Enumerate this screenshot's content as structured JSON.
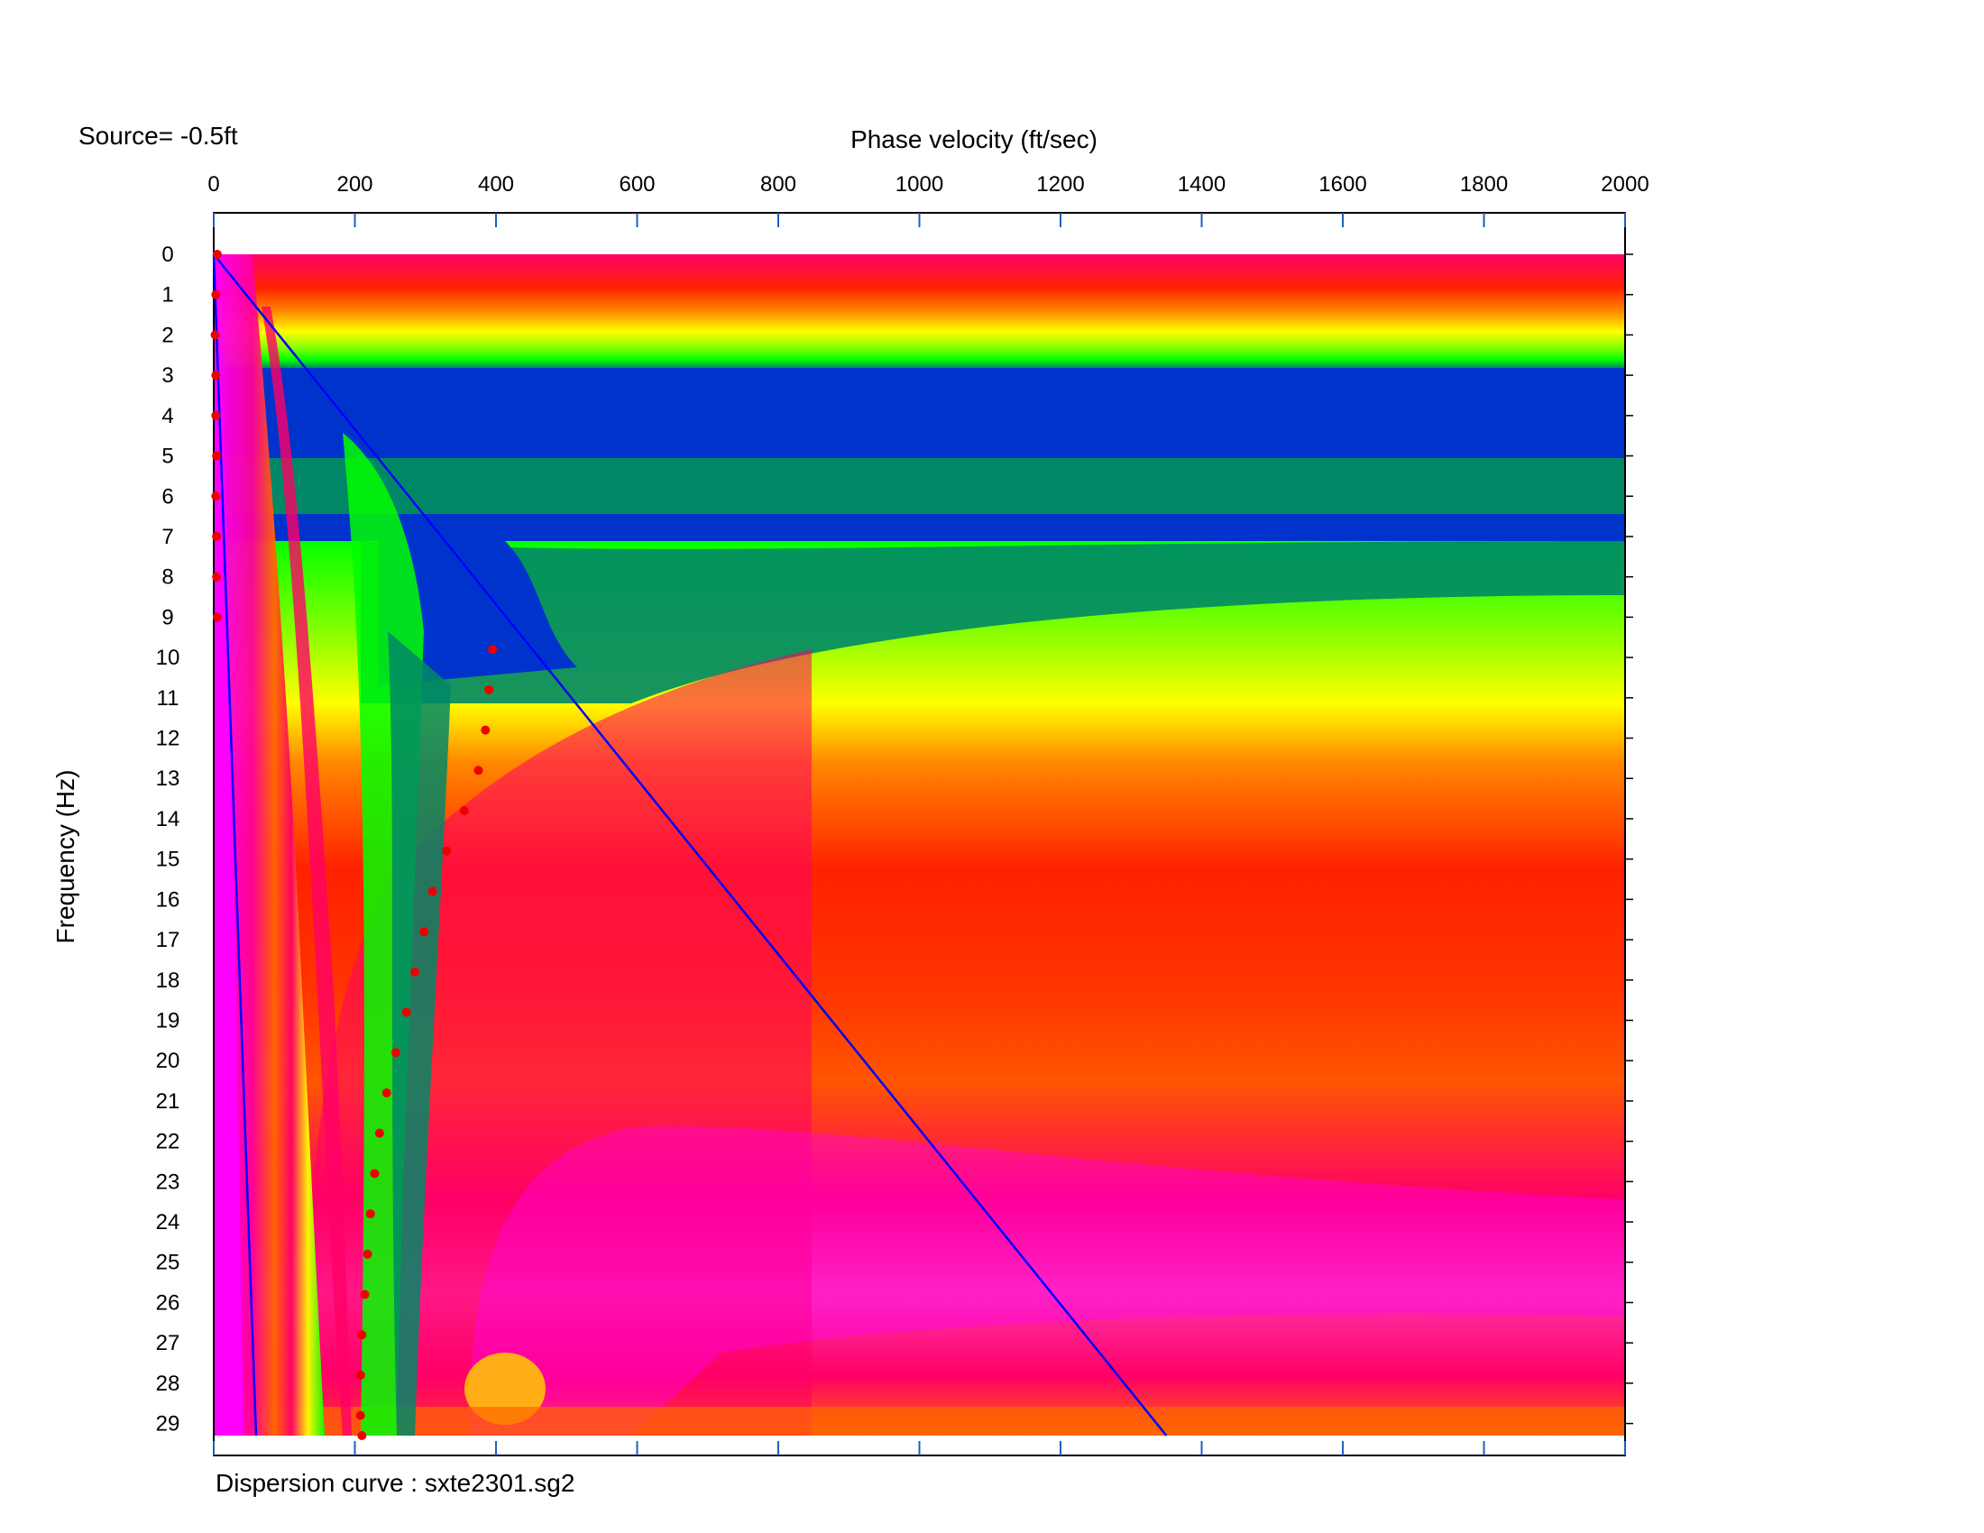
{
  "source_label": "Source= -0.5ft",
  "caption": "Dispersion curve : sxte2301.sg2",
  "chart_data": {
    "type": "heatmap",
    "xlabel": "Phase velocity (ft/sec)",
    "ylabel": "Frequency (Hz)",
    "x_axis_position": "top",
    "y_axis_inverted": true,
    "xlim": [
      0,
      2000
    ],
    "ylim": [
      0,
      29.3
    ],
    "x_ticks": [
      0,
      200,
      400,
      600,
      800,
      1000,
      1200,
      1400,
      1600,
      1800,
      2000
    ],
    "y_ticks": [
      0,
      1,
      2,
      3,
      4,
      5,
      6,
      7,
      8,
      9,
      10,
      11,
      12,
      13,
      14,
      15,
      16,
      17,
      18,
      19,
      20,
      21,
      22,
      23,
      24,
      25,
      26,
      27,
      28,
      29
    ],
    "x_tick_labels": [
      "0",
      "200",
      "400",
      "600",
      "800",
      "1000",
      "1200",
      "1400",
      "1600",
      "1800",
      "2000"
    ],
    "y_tick_labels": [
      "0",
      "1",
      "2",
      "3",
      "4",
      "5",
      "6",
      "7",
      "8",
      "9",
      "10",
      "11",
      "12",
      "13",
      "14",
      "15",
      "16",
      "17",
      "18",
      "19",
      "20",
      "21",
      "22",
      "23",
      "24",
      "25",
      "26",
      "27",
      "28",
      "29"
    ],
    "colormap": [
      "#ff00ff",
      "#ff0066",
      "#ff2200",
      "#ff8800",
      "#ffff00",
      "#88ff00",
      "#00ff00",
      "#008866",
      "#0033cc"
    ],
    "dispersion_points": [
      {
        "f": 0,
        "v": 5
      },
      {
        "f": 1,
        "v": 3
      },
      {
        "f": 2,
        "v": 2
      },
      {
        "f": 3,
        "v": 3
      },
      {
        "f": 4,
        "v": 3
      },
      {
        "f": 5,
        "v": 4
      },
      {
        "f": 6,
        "v": 3
      },
      {
        "f": 7,
        "v": 4
      },
      {
        "f": 8,
        "v": 4
      },
      {
        "f": 9,
        "v": 5
      },
      {
        "f": 9.8,
        "v": 395
      },
      {
        "f": 10.8,
        "v": 390
      },
      {
        "f": 11.8,
        "v": 385
      },
      {
        "f": 12.8,
        "v": 375
      },
      {
        "f": 13.8,
        "v": 355
      },
      {
        "f": 14.8,
        "v": 330
      },
      {
        "f": 15.8,
        "v": 310
      },
      {
        "f": 16.8,
        "v": 298
      },
      {
        "f": 17.8,
        "v": 285
      },
      {
        "f": 18.8,
        "v": 273
      },
      {
        "f": 19.8,
        "v": 258
      },
      {
        "f": 20.8,
        "v": 245
      },
      {
        "f": 21.8,
        "v": 235
      },
      {
        "f": 22.8,
        "v": 228
      },
      {
        "f": 23.8,
        "v": 222
      },
      {
        "f": 24.8,
        "v": 218
      },
      {
        "f": 25.8,
        "v": 214
      },
      {
        "f": 26.8,
        "v": 210
      },
      {
        "f": 27.8,
        "v": 208
      },
      {
        "f": 28.8,
        "v": 208
      },
      {
        "f": 29.3,
        "v": 210
      }
    ],
    "lines": [
      {
        "name": "",
        "color": "#0000ff",
        "points": [
          [
            0,
            0
          ],
          [
            1350,
            29.3
          ]
        ]
      },
      {
        "name": "",
        "color": "#0000ff",
        "points": [
          [
            0,
            0
          ],
          [
            60,
            29.3
          ]
        ]
      }
    ],
    "dispersion_color": "#ee0000"
  }
}
